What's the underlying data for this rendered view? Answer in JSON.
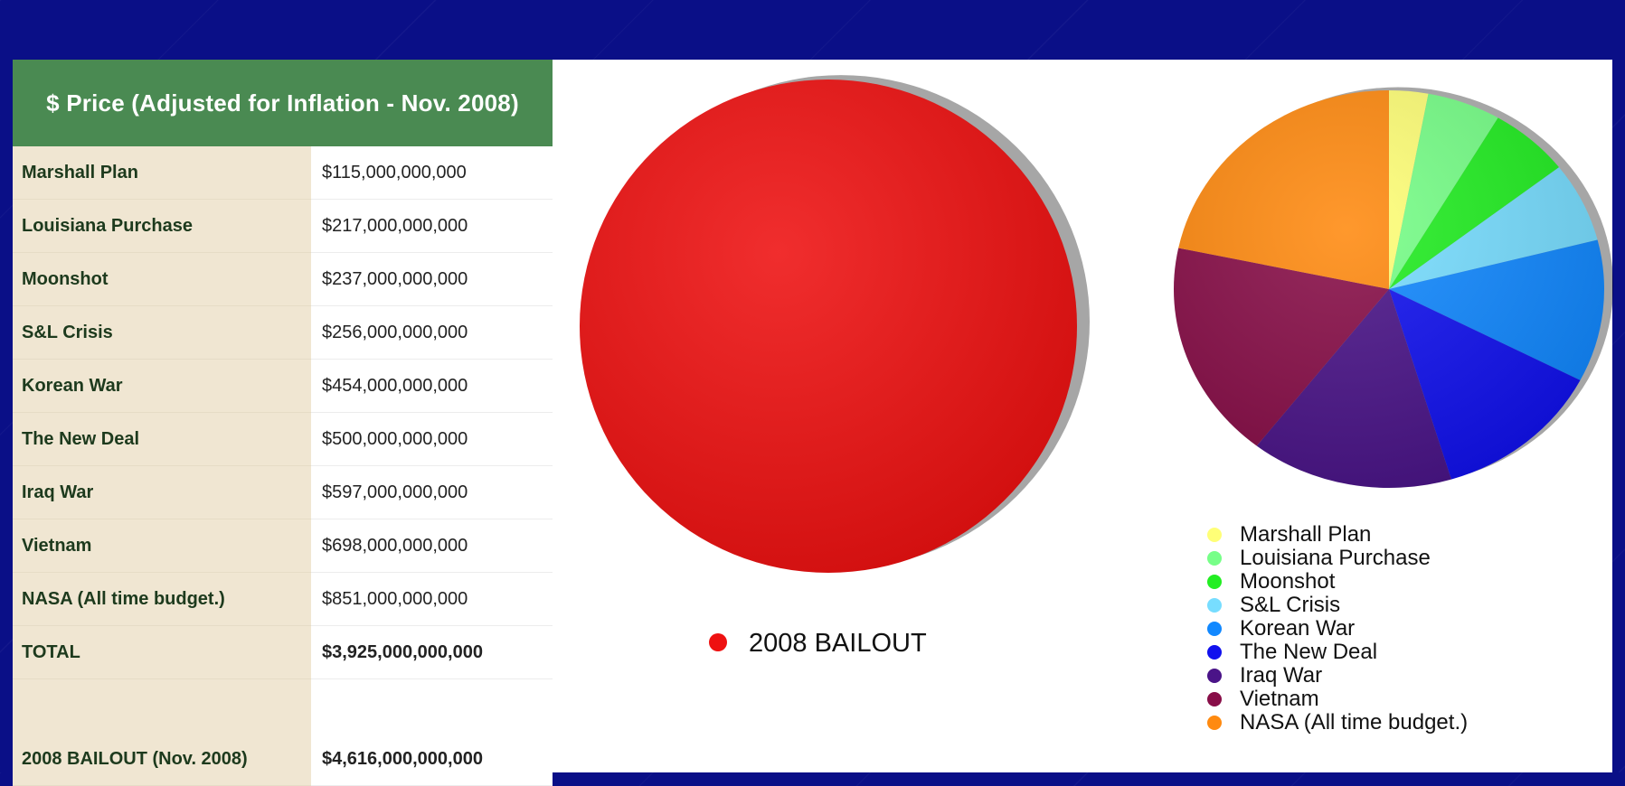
{
  "table": {
    "header": "$ Price (Adjusted for Inflation - Nov. 2008)",
    "rows": [
      {
        "name": "Marshall Plan",
        "value": "$115,000,000,000"
      },
      {
        "name": "Louisiana Purchase",
        "value": "$217,000,000,000"
      },
      {
        "name": "Moonshot",
        "value": "$237,000,000,000"
      },
      {
        "name": "S&L Crisis",
        "value": "$256,000,000,000"
      },
      {
        "name": "Korean War",
        "value": "$454,000,000,000"
      },
      {
        "name": "The New Deal",
        "value": "$500,000,000,000"
      },
      {
        "name": "Iraq War",
        "value": "$597,000,000,000"
      },
      {
        "name": "Vietnam",
        "value": "$698,000,000,000"
      },
      {
        "name": "NASA (All time budget.)",
        "value": "$851,000,000,000"
      }
    ],
    "total": {
      "name": "TOTAL",
      "value": "$3,925,000,000,000"
    },
    "bailout": {
      "name": "2008 BAILOUT (Nov. 2008)",
      "value": "$4,616,000,000,000"
    }
  },
  "chart_data": [
    {
      "type": "pie",
      "title": "",
      "categories": [
        "2008 BAILOUT"
      ],
      "values": [
        4616000000000
      ],
      "colors": [
        "#ee1111"
      ],
      "legend": "bottom"
    },
    {
      "type": "pie",
      "title": "",
      "categories": [
        "Marshall Plan",
        "Louisiana Purchase",
        "Moonshot",
        "S&L Crisis",
        "Korean War",
        "The New Deal",
        "Iraq War",
        "Vietnam",
        "NASA (All time budget.)"
      ],
      "values": [
        115000000000,
        217000000000,
        237000000000,
        256000000000,
        454000000000,
        500000000000,
        597000000000,
        698000000000,
        851000000000
      ],
      "colors": [
        "#ffff77",
        "#77ff88",
        "#22ee22",
        "#77ddff",
        "#1188ff",
        "#1111ee",
        "#4a1488",
        "#880e48",
        "#ff8a10"
      ],
      "legend": "bottom"
    }
  ]
}
